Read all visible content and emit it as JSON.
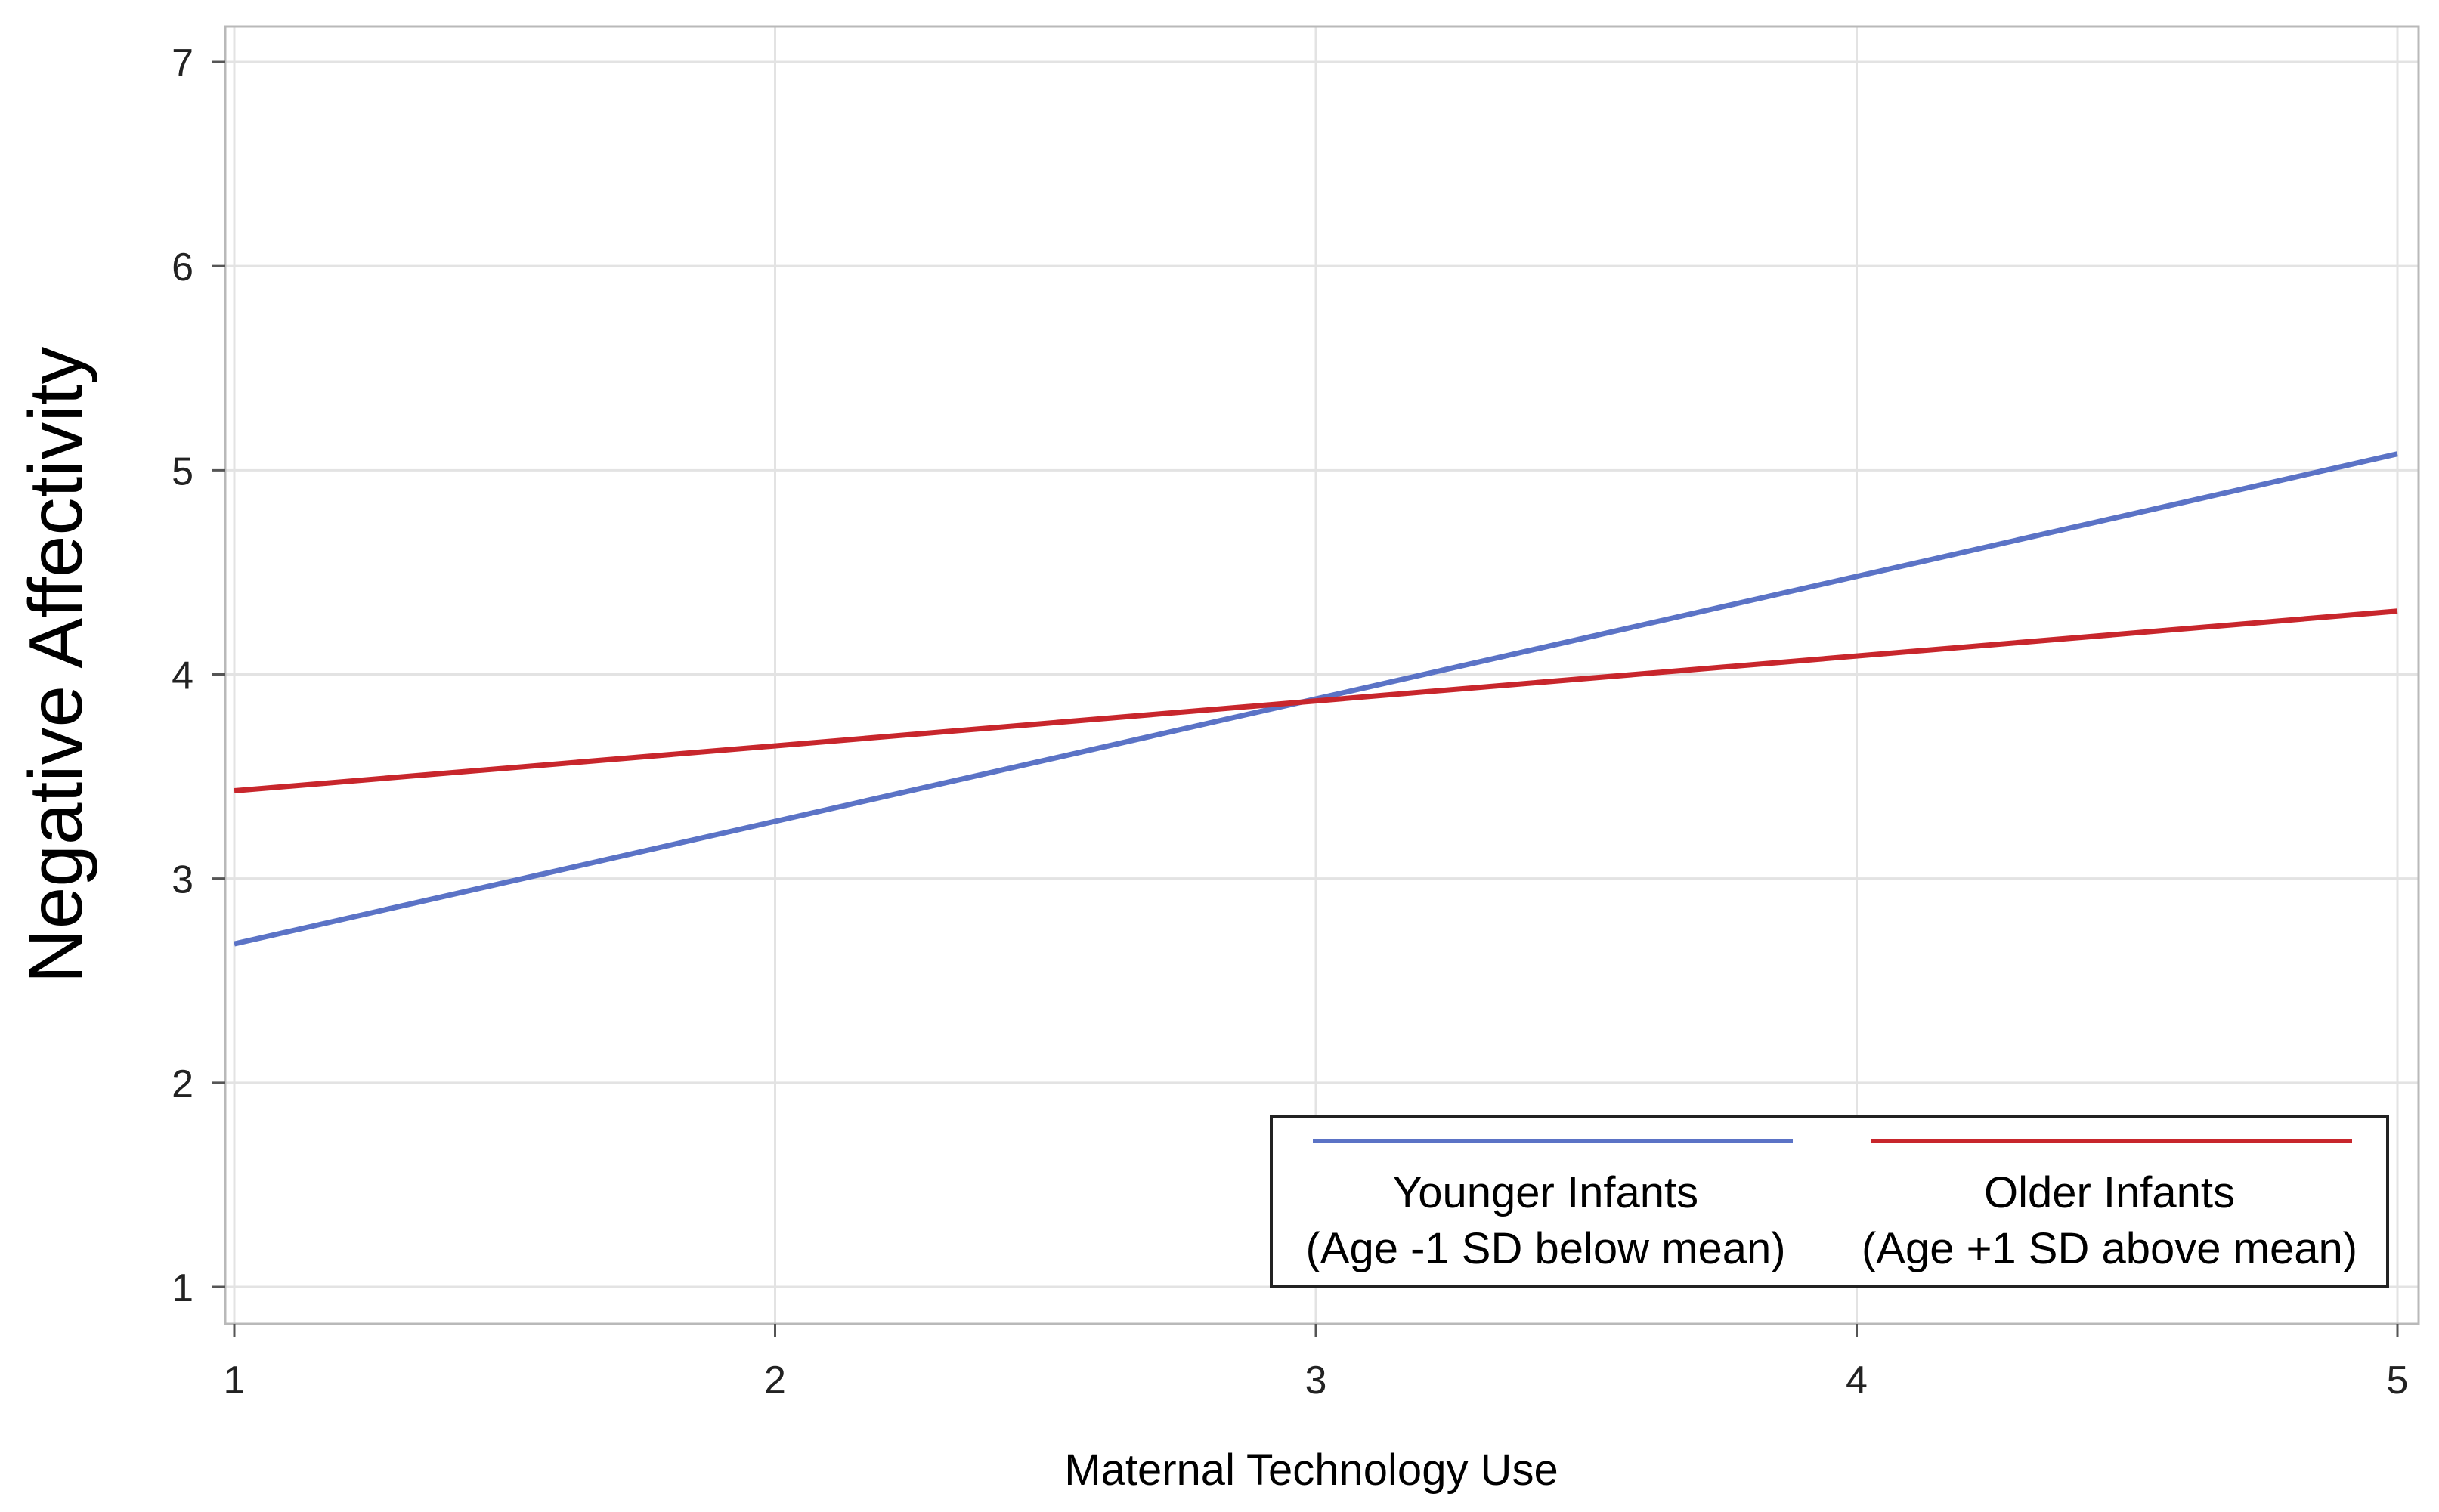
{
  "chart_data": {
    "type": "line",
    "title": "",
    "xlabel": "Maternal Technology Use",
    "ylabel": "Negative Affectivity",
    "xlim": [
      1,
      5
    ],
    "ylim": [
      0.85,
      7.15
    ],
    "xticks": [
      1,
      2,
      3,
      4,
      5
    ],
    "yticks": [
      1,
      2,
      3,
      4,
      5,
      6,
      7
    ],
    "grid": true,
    "legend_position": "bottom-right",
    "series": [
      {
        "name": "Younger Infants",
        "name_line2": "(Age -1 SD below mean)",
        "color": "#5B73C6",
        "x": [
          1,
          5
        ],
        "y": [
          2.68,
          5.08
        ]
      },
      {
        "name": "Older Infants",
        "name_line2": "(Age +1 SD above mean)",
        "color": "#C8262C",
        "x": [
          1,
          5
        ],
        "y": [
          3.43,
          4.31
        ]
      }
    ]
  }
}
